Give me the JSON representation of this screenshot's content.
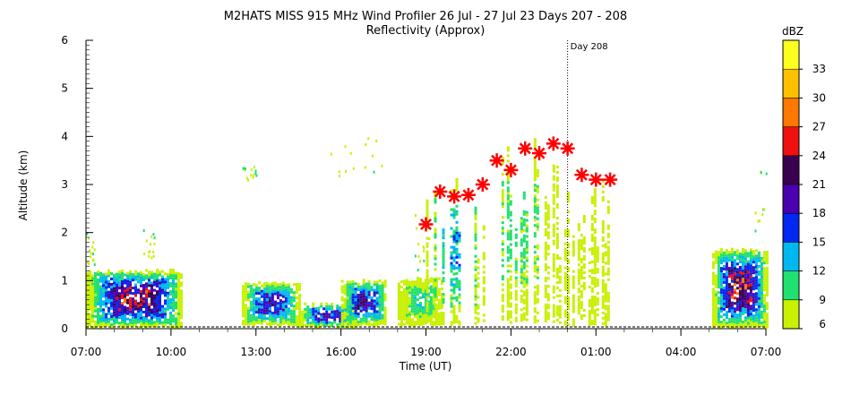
{
  "chart_data": {
    "type": "heatmap",
    "title": "M2HATS MISS 915 MHz Wind Profiler  26 Jul - 27 Jul 23 Days 207 - 208",
    "subtitle": "Reflectivity (Approx)",
    "xlabel": "Time (UT)",
    "ylabel": "Altitude (km)",
    "x_tick_labels": [
      "07:00",
      "10:00",
      "13:00",
      "16:00",
      "19:00",
      "22:00",
      "01:00",
      "04:00",
      "07:00"
    ],
    "y_tick_labels": [
      "0",
      "1",
      "2",
      "3",
      "4",
      "5",
      "6"
    ],
    "xlim_hours": [
      7,
      31
    ],
    "ylim": [
      0,
      6
    ],
    "day_marker": {
      "label": "Day 208",
      "x_hours": 24
    },
    "colorbar": {
      "title": "dBZ",
      "tick_labels": [
        "6",
        "9",
        "12",
        "15",
        "18",
        "21",
        "24",
        "27",
        "30",
        "33"
      ],
      "range": [
        6,
        36
      ],
      "colors": [
        "#c8f000",
        "#20e070",
        "#00b8f0",
        "#0028f0",
        "#4a00b0",
        "#3a0050",
        "#f01010",
        "#ff7800",
        "#ffc000",
        "#ffff20"
      ]
    },
    "reflectivity_regions": [
      {
        "x0": 7.0,
        "x1": 10.4,
        "y0": 0.05,
        "y1": 1.25,
        "peak": 26
      },
      {
        "x0": 12.5,
        "x1": 14.5,
        "y0": 0.1,
        "y1": 1.0,
        "peak": 21
      },
      {
        "x0": 14.5,
        "x1": 16.5,
        "y0": 0.05,
        "y1": 0.55,
        "peak": 21
      },
      {
        "x0": 16.0,
        "x1": 17.6,
        "y0": 0.1,
        "y1": 1.05,
        "peak": 21
      },
      {
        "x0": 18.0,
        "x1": 19.6,
        "y0": 0.1,
        "y1": 1.1,
        "peak": 12
      },
      {
        "x0": 19.0,
        "x1": 21.0,
        "y0": 0.1,
        "y1": 3.2,
        "peak": 15
      },
      {
        "x0": 21.0,
        "x1": 23.5,
        "y0": 0.15,
        "y1": 4.0,
        "peak": 11
      },
      {
        "x0": 23.5,
        "x1": 25.5,
        "y0": 0.1,
        "y1": 3.4,
        "peak": 8
      },
      {
        "x0": 29.1,
        "x1": 31.0,
        "y0": 0.05,
        "y1": 1.7,
        "peak": 27
      }
    ],
    "marker_series": {
      "name": "",
      "marker": "asterisk",
      "color": "#ff0000",
      "x_hours": [
        19.0,
        19.5,
        20.0,
        20.5,
        21.0,
        21.5,
        22.0,
        22.5,
        23.0,
        23.5,
        24.0,
        24.5,
        25.0,
        25.5
      ],
      "y_km": [
        2.17,
        2.85,
        2.75,
        2.78,
        3.0,
        3.5,
        3.3,
        3.75,
        3.65,
        3.85,
        3.75,
        3.2,
        3.1,
        3.1
      ]
    }
  }
}
